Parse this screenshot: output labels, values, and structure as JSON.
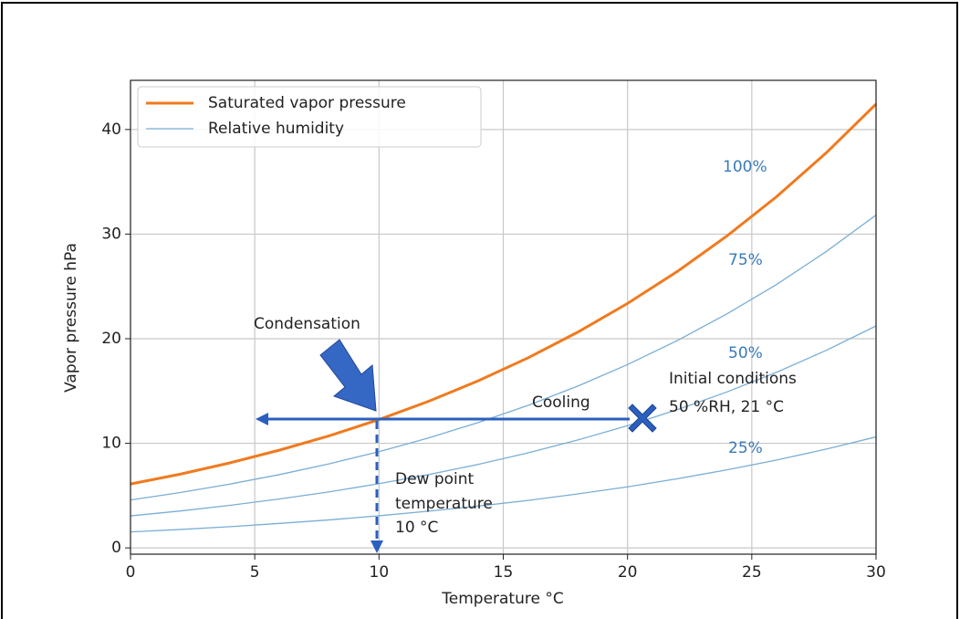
{
  "chart_data": {
    "type": "line",
    "x_label": "Temperature °C",
    "y_label": "Vapor pressure hPa",
    "x": [
      0,
      2,
      4,
      6,
      8,
      10,
      12,
      14,
      16,
      18,
      20,
      22,
      24,
      26,
      28,
      30
    ],
    "series": [
      {
        "name": "Saturated vapor pressure",
        "color": "#f07a1e",
        "label": "100%",
        "values": [
          6.11,
          7.05,
          8.13,
          9.35,
          10.72,
          12.27,
          14.02,
          15.98,
          18.17,
          20.63,
          23.37,
          26.42,
          29.82,
          33.58,
          37.78,
          42.43
        ]
      },
      {
        "name": "Relative humidity",
        "color": "#7aaed6",
        "label": "75%",
        "values": [
          4.58,
          5.29,
          6.1,
          7.01,
          8.04,
          9.2,
          10.52,
          11.99,
          13.63,
          15.47,
          17.53,
          19.82,
          22.37,
          25.19,
          28.34,
          31.82
        ]
      },
      {
        "color": "#7aaed6",
        "label": "50%",
        "values": [
          3.06,
          3.53,
          4.07,
          4.68,
          5.36,
          6.14,
          7.01,
          7.99,
          9.09,
          10.32,
          11.69,
          13.21,
          14.91,
          16.79,
          18.89,
          21.22
        ]
      },
      {
        "color": "#7aaed6",
        "label": "25%",
        "values": [
          1.53,
          1.76,
          2.03,
          2.34,
          2.68,
          3.07,
          3.51,
          4.0,
          4.54,
          5.16,
          5.84,
          6.61,
          7.46,
          8.4,
          9.45,
          10.61
        ]
      }
    ],
    "xlim": [
      0,
      30
    ],
    "xticks": [
      0,
      5,
      10,
      15,
      20,
      25,
      30
    ],
    "ylim": [
      -0.6,
      44.7
    ],
    "yticks": [
      0,
      10,
      20,
      30,
      40
    ],
    "grid": true,
    "legend": "upper left",
    "annotations": {
      "condensation": "Condensation",
      "cooling": "Cooling",
      "initial": [
        "Initial conditions",
        "50 %RH, 21 °C"
      ],
      "dew_point": [
        "Dew point",
        "temperature",
        "10 °C"
      ]
    }
  }
}
